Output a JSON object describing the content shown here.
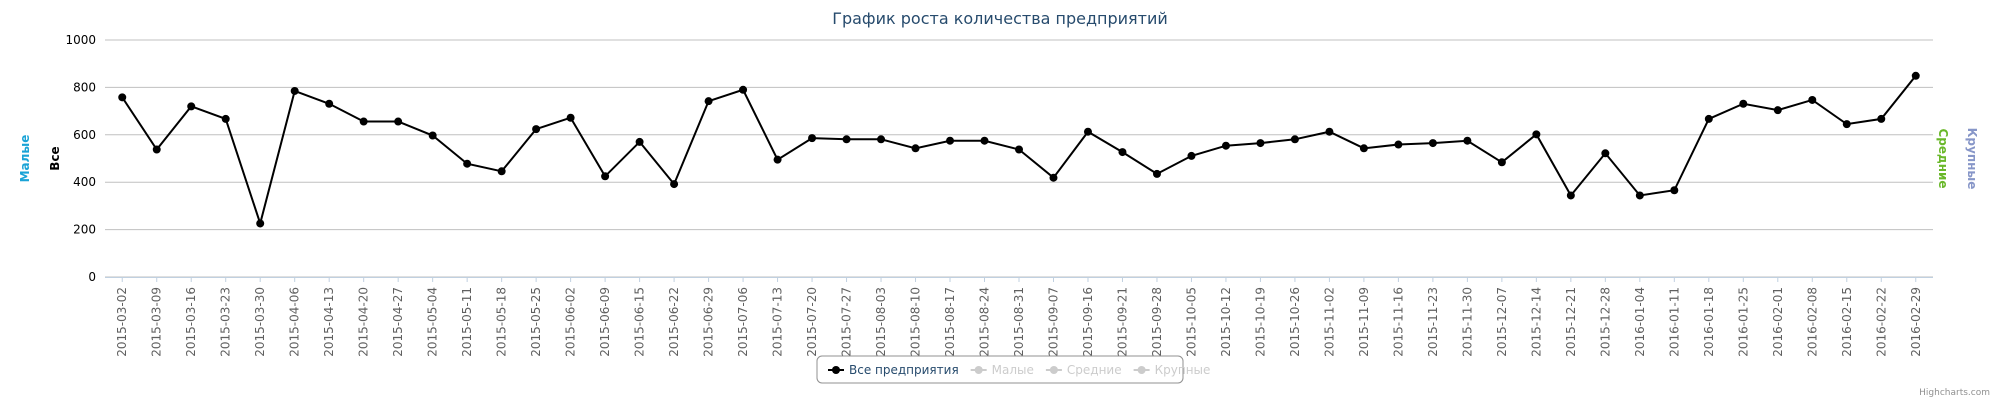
{
  "chart_data": {
    "type": "line",
    "title": "График роста количества предприятий",
    "categories": [
      "2015-03-02",
      "2015-03-09",
      "2015-03-16",
      "2015-03-23",
      "2015-03-30",
      "2015-04-06",
      "2015-04-13",
      "2015-04-20",
      "2015-04-27",
      "2015-05-04",
      "2015-05-11",
      "2015-05-18",
      "2015-05-25",
      "2015-06-02",
      "2015-06-09",
      "2015-06-15",
      "2015-06-22",
      "2015-06-29",
      "2015-07-06",
      "2015-07-13",
      "2015-07-20",
      "2015-07-27",
      "2015-08-03",
      "2015-08-10",
      "2015-08-17",
      "2015-08-24",
      "2015-08-31",
      "2015-09-07",
      "2015-09-16",
      "2015-09-21",
      "2015-09-28",
      "2015-10-05",
      "2015-10-12",
      "2015-10-19",
      "2015-10-26",
      "2015-11-02",
      "2015-11-09",
      "2015-11-16",
      "2015-11-23",
      "2015-11-30",
      "2015-12-07",
      "2015-12-14",
      "2015-12-21",
      "2015-12-28",
      "2016-01-04",
      "2016-01-11",
      "2016-01-18",
      "2016-01-25",
      "2016-02-01",
      "2016-02-08",
      "2016-02-15",
      "2016-02-22",
      "2016-02-29"
    ],
    "series": [
      {
        "name": "Все предприятия",
        "color": "#000000",
        "visible": true,
        "values": [
          758,
          538,
          720,
          667,
          226,
          785,
          731,
          656,
          656,
          597,
          478,
          446,
          624,
          672,
          425,
          570,
          392,
          742,
          790,
          495,
          586,
          581,
          581,
          543,
          575,
          575,
          538,
          419,
          613,
          527,
          435,
          511,
          554,
          565,
          581,
          613,
          543,
          559,
          565,
          575,
          484,
          602,
          344,
          522,
          344,
          366,
          667,
          731,
          704,
          747,
          645,
          667,
          849
        ]
      },
      {
        "name": "Малые",
        "color": "#cccccc",
        "visible": false
      },
      {
        "name": "Средние",
        "color": "#cccccc",
        "visible": false
      },
      {
        "name": "Крупные",
        "color": "#cccccc",
        "visible": false
      }
    ],
    "ylim": [
      0,
      1000
    ],
    "yticks": [
      0,
      200,
      400,
      600,
      800,
      1000
    ],
    "grid": true,
    "y_axis_titles_left": [
      {
        "text": "Малые",
        "color": "#1aa3d6"
      },
      {
        "text": "Все",
        "color": "#000000"
      }
    ],
    "y_axis_titles_right": [
      {
        "text": "Средние",
        "color": "#6ab82a"
      },
      {
        "text": "Крупные",
        "color": "#8796c8"
      }
    ],
    "legend": "bottom",
    "credits": "Highcharts.com"
  }
}
